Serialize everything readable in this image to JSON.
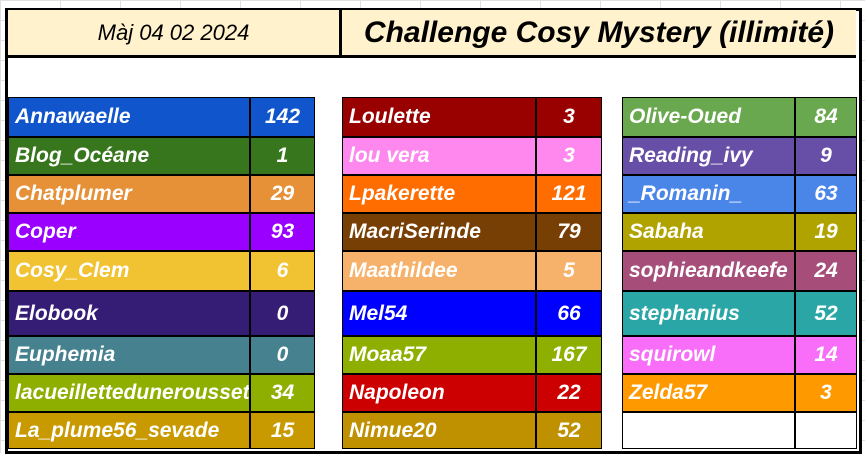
{
  "header": {
    "date": "Màj  04 02 2024",
    "title": "Challenge Cosy Mystery (illimité)"
  },
  "columns": [
    [
      {
        "name": "Annawaelle",
        "count": "142",
        "color": "#1155cc"
      },
      {
        "name": "Blog_Océane",
        "count": "1",
        "color": "#38761d"
      },
      {
        "name": "Chatplumer",
        "count": "29",
        "color": "#e69138"
      },
      {
        "name": "Coper",
        "count": "93",
        "color": "#9900ff"
      },
      {
        "name": "Cosy_Clem",
        "count": "6",
        "color": "#f1c232"
      },
      {
        "name": "Elobook",
        "count": "0",
        "color": "#351c75"
      },
      {
        "name": "Euphemia",
        "count": "0",
        "color": "#45818e"
      },
      {
        "name": "lacueilletteduneroussette",
        "count": "34",
        "color": "#8faf00"
      },
      {
        "name": "La_plume56_sevade",
        "count": "15",
        "color": "#c99a00"
      }
    ],
    [
      {
        "name": "Loulette",
        "count": "3",
        "color": "#990000"
      },
      {
        "name": "lou vera",
        "count": "3",
        "color": "#ff88ee"
      },
      {
        "name": "Lpakerette",
        "count": "121",
        "color": "#ff6d01"
      },
      {
        "name": "MacriSerinde",
        "count": "79",
        "color": "#783f04"
      },
      {
        "name": "Maathildee",
        "count": "5",
        "color": "#f6b26b"
      },
      {
        "name": "Mel54",
        "count": "66",
        "color": "#0000ff"
      },
      {
        "name": "Moaa57",
        "count": "167",
        "color": "#8faf00"
      },
      {
        "name": "Napoleon",
        "count": "22",
        "color": "#cc0000"
      },
      {
        "name": "Nimue20",
        "count": "52",
        "color": "#bf9000"
      }
    ],
    [
      {
        "name": "Olive-Oued",
        "count": "84",
        "color": "#6aa84f"
      },
      {
        "name": "Reading_ivy",
        "count": "9",
        "color": "#674ea7"
      },
      {
        "name": "_Romanin_",
        "count": "63",
        "color": "#4a86e8"
      },
      {
        "name": "Sabaha",
        "count": "19",
        "color": "#b0a300"
      },
      {
        "name": "sophieandkeefe",
        "count": "24",
        "color": "#a64d79"
      },
      {
        "name": "stephanius",
        "count": "52",
        "color": "#2aa6a6"
      },
      {
        "name": "squirowl",
        "count": "14",
        "color": "#f86ef8"
      },
      {
        "name": "Zelda57",
        "count": "3",
        "color": "#ff9900"
      }
    ]
  ]
}
